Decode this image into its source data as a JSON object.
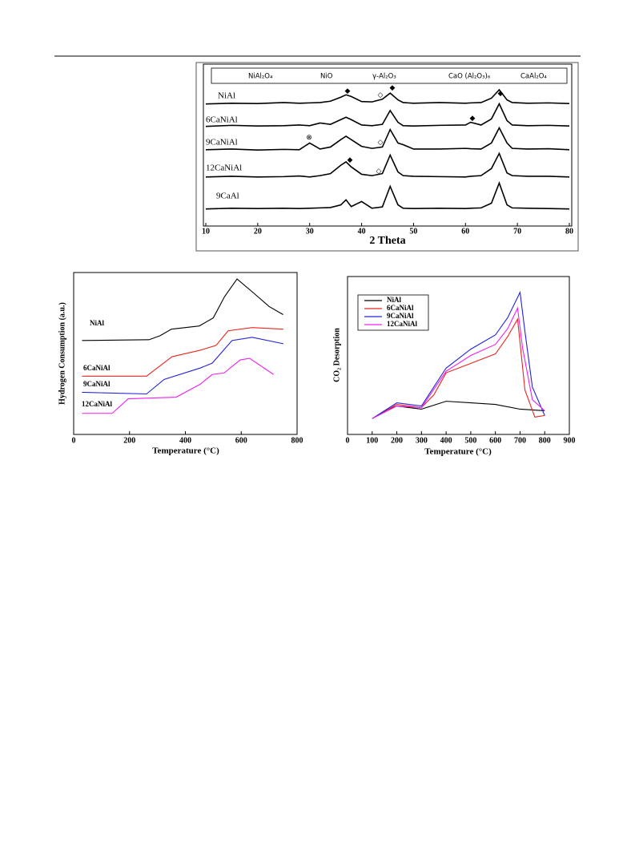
{
  "chart_data": [
    {
      "type": "line",
      "x_label": "2 Theta",
      "legend_items": [
        "NiAl₂O₄",
        "NiO",
        "γ-Al₂O₃",
        "CaO (Al₂O₃)₆",
        "CaAl₂O₄"
      ],
      "xlim": [
        10,
        80
      ],
      "xticks": [
        10,
        20,
        30,
        40,
        50,
        60,
        70,
        80
      ],
      "ylim": [
        0,
        100
      ],
      "series": [
        {
          "name": "NiAl",
          "color": "#000000",
          "x": [
            10,
            15,
            20,
            25,
            28,
            30,
            32,
            34,
            36,
            37,
            38,
            40,
            42,
            44,
            45.5,
            47,
            48,
            50,
            55,
            60,
            61,
            63,
            65,
            66.5,
            68,
            69,
            72,
            76,
            80
          ],
          "values": [
            8,
            10,
            9,
            12,
            10,
            11,
            12,
            16,
            28,
            35,
            30,
            15,
            14,
            22,
            40,
            20,
            12,
            10,
            12,
            10,
            11,
            12,
            25,
            50,
            20,
            12,
            10,
            11,
            9
          ]
        },
        {
          "name": "6CaNiAl",
          "color": "#000000",
          "x": [
            10,
            15,
            20,
            25,
            28,
            30,
            32,
            34,
            36,
            37,
            38,
            40,
            42,
            44,
            45.5,
            47,
            48,
            50,
            55,
            60,
            61,
            63,
            65,
            66.5,
            68,
            69,
            72,
            76,
            80
          ],
          "values": [
            8,
            11,
            9,
            10,
            12,
            10,
            18,
            14,
            28,
            35,
            28,
            12,
            10,
            14,
            55,
            20,
            10,
            9,
            11,
            12,
            20,
            12,
            30,
            75,
            25,
            12,
            10,
            11,
            9
          ]
        },
        {
          "name": "9CaNiAl",
          "color": "#000000",
          "x": [
            10,
            15,
            20,
            25,
            28,
            30,
            32,
            34,
            36,
            37,
            38,
            40,
            42,
            44,
            45.5,
            47,
            48,
            50,
            55,
            60,
            61,
            63,
            65,
            66.5,
            68,
            69,
            72,
            76,
            80
          ],
          "values": [
            10,
            12,
            9,
            11,
            10,
            30,
            12,
            18,
            40,
            50,
            40,
            20,
            14,
            18,
            70,
            30,
            25,
            12,
            12,
            14,
            13,
            12,
            30,
            75,
            30,
            14,
            12,
            13,
            10
          ]
        },
        {
          "name": "12CaNiAl",
          "color": "#000000",
          "x": [
            10,
            15,
            20,
            25,
            28,
            30,
            32,
            34,
            36,
            37,
            38,
            40,
            42,
            44,
            45.5,
            47,
            48,
            50,
            55,
            60,
            61,
            63,
            65,
            66.5,
            68,
            69,
            72,
            76,
            80
          ],
          "values": [
            10,
            12,
            10,
            11,
            13,
            10,
            14,
            20,
            45,
            55,
            40,
            18,
            14,
            20,
            75,
            25,
            14,
            12,
            11,
            10,
            12,
            14,
            35,
            80,
            22,
            14,
            12,
            12,
            10
          ]
        },
        {
          "name": "9CaAl",
          "color": "#000000",
          "x": [
            10,
            15,
            20,
            25,
            28,
            30,
            32,
            34,
            36,
            37,
            38,
            40,
            42,
            44,
            45.5,
            47,
            48,
            50,
            55,
            60,
            61,
            63,
            65,
            66.5,
            68,
            69,
            72,
            76,
            80
          ],
          "values": [
            8,
            10,
            9,
            10,
            9,
            10,
            11,
            12,
            20,
            35,
            15,
            30,
            10,
            14,
            75,
            20,
            10,
            9,
            10,
            9,
            10,
            11,
            25,
            85,
            20,
            11,
            10,
            9,
            8
          ]
        }
      ]
    },
    {
      "type": "line",
      "x_label": "Temperature (°C)",
      "y_label": "Hydrogen Consumption (a.u.)",
      "xlim": [
        0,
        800
      ],
      "xticks": [
        0,
        200,
        400,
        600,
        800
      ],
      "ylim": [
        0,
        100
      ],
      "series": [
        {
          "name": "NiAl",
          "color": "#000000",
          "x": [
            30,
            270,
            310,
            350,
            450,
            500,
            540,
            585,
            640,
            700,
            750
          ],
          "values": [
            58,
            58.5,
            61,
            65,
            67,
            72,
            85,
            96,
            88,
            79,
            74
          ]
        },
        {
          "name": "6CaNiAl",
          "color": "#e8271f",
          "x": [
            30,
            261,
            352,
            453,
            510,
            553,
            639,
            751
          ],
          "values": [
            36,
            36,
            48,
            52,
            55,
            64,
            66,
            65
          ]
        },
        {
          "name": "9CaNiAl",
          "color": "#2323d8",
          "x": [
            30,
            261,
            324,
            453,
            496,
            567,
            639,
            751
          ],
          "values": [
            26,
            25,
            34,
            41,
            44,
            58,
            60,
            56
          ]
        },
        {
          "name": "12CaNiAl",
          "color": "#f020f0",
          "x": [
            30,
            138,
            195,
            367,
            453,
            496,
            539,
            596,
            630,
            716
          ],
          "values": [
            13,
            13,
            22,
            23,
            31,
            37,
            38,
            46,
            47,
            37
          ]
        }
      ]
    },
    {
      "type": "line",
      "x_label": "Temperature (°C)",
      "y_label": "CO₂ Desorption",
      "xlim": [
        0,
        900
      ],
      "xticks": [
        0,
        100,
        200,
        300,
        400,
        500,
        600,
        700,
        800,
        900
      ],
      "ylim": [
        0,
        100
      ],
      "series": [
        {
          "name": "NiAl",
          "color": "#000000",
          "x": [
            100,
            150,
            200,
            300,
            400,
            500,
            600,
            700,
            800
          ],
          "values": [
            10,
            15,
            18,
            16,
            21,
            20,
            19,
            16,
            15
          ]
        },
        {
          "name": "6CaNiAl",
          "color": "#e8271f",
          "x": [
            100,
            200,
            300,
            350,
            400,
            500,
            600,
            650,
            690,
            720,
            760,
            800
          ],
          "values": [
            10,
            19,
            17,
            25,
            39,
            45,
            51,
            62,
            73,
            28,
            11,
            12
          ]
        },
        {
          "name": "9CaNiAl",
          "color": "#2323d8",
          "x": [
            100,
            200,
            300,
            400,
            500,
            600,
            650,
            700,
            720,
            750,
            800
          ],
          "values": [
            10,
            20,
            18,
            42,
            54,
            63,
            74,
            90,
            65,
            30,
            12
          ]
        },
        {
          "name": "12CaNiAl",
          "color": "#f020f0",
          "x": [
            100,
            200,
            300,
            400,
            500,
            600,
            650,
            690,
            710,
            750,
            800
          ],
          "values": [
            10,
            18,
            17,
            40,
            50,
            57,
            67,
            80,
            55,
            22,
            15
          ]
        }
      ]
    }
  ]
}
